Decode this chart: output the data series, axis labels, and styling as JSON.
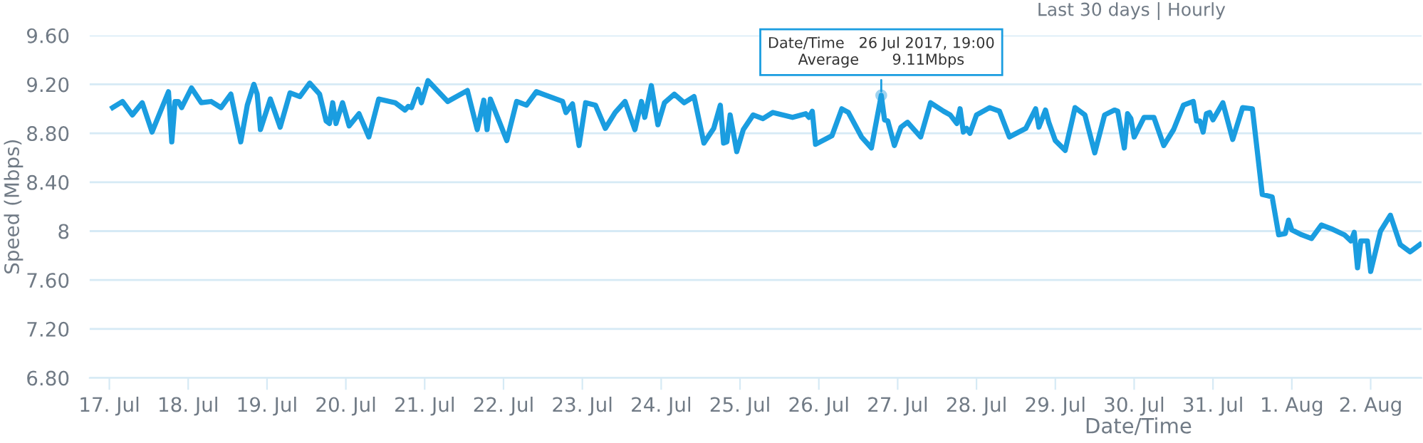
{
  "chart_data": {
    "type": "line",
    "subtitle": "Last 30 days | Hourly",
    "xlabel": "Date/Time",
    "ylabel": "Speed (Mbps)",
    "x": [
      "2017-07-17T01:00",
      "2017-07-17T04:00",
      "2017-07-17T07:00",
      "2017-07-17T10:00",
      "2017-07-17T13:00",
      "2017-07-17T18:00",
      "2017-07-17T19:00",
      "2017-07-17T20:00",
      "2017-07-17T21:00",
      "2017-07-17T22:00",
      "2017-07-18T01:00",
      "2017-07-18T04:00",
      "2017-07-18T07:00",
      "2017-07-18T10:00",
      "2017-07-18T13:00",
      "2017-07-18T16:00",
      "2017-07-18T18:00",
      "2017-07-18T20:00",
      "2017-07-18T21:00",
      "2017-07-18T22:00",
      "2017-07-19T01:00",
      "2017-07-19T04:00",
      "2017-07-19T07:00",
      "2017-07-19T10:00",
      "2017-07-19T13:00",
      "2017-07-19T16:00",
      "2017-07-19T18:00",
      "2017-07-19T19:00",
      "2017-07-19T20:00",
      "2017-07-19T21:00",
      "2017-07-19T23:00",
      "2017-07-20T01:00",
      "2017-07-20T04:00",
      "2017-07-20T07:00",
      "2017-07-20T10:00",
      "2017-07-20T15:00",
      "2017-07-20T18:00",
      "2017-07-20T19:00",
      "2017-07-20T20:00",
      "2017-07-20T22:00",
      "2017-07-20T23:00",
      "2017-07-21T01:00",
      "2017-07-21T07:00",
      "2017-07-21T13:00",
      "2017-07-21T16:00",
      "2017-07-21T18:00",
      "2017-07-21T19:00",
      "2017-07-21T20:00",
      "2017-07-22T01:00",
      "2017-07-22T04:00",
      "2017-07-22T07:00",
      "2017-07-22T10:00",
      "2017-07-22T18:00",
      "2017-07-22T19:00",
      "2017-07-22T21:00",
      "2017-07-22T23:00",
      "2017-07-23T01:00",
      "2017-07-23T04:00",
      "2017-07-23T07:00",
      "2017-07-23T10:00",
      "2017-07-23T13:00",
      "2017-07-23T16:00",
      "2017-07-23T18:00",
      "2017-07-23T19:00",
      "2017-07-23T21:00",
      "2017-07-23T23:00",
      "2017-07-24T01:00",
      "2017-07-24T04:00",
      "2017-07-24T07:00",
      "2017-07-24T10:00",
      "2017-07-24T13:00",
      "2017-07-24T16:00",
      "2017-07-24T18:00",
      "2017-07-24T19:00",
      "2017-07-24T20:00",
      "2017-07-24T21:00",
      "2017-07-24T23:00",
      "2017-07-25T01:00",
      "2017-07-25T04:00",
      "2017-07-25T07:00",
      "2017-07-25T10:00",
      "2017-07-25T16:00",
      "2017-07-25T20:00",
      "2017-07-25T21:00",
      "2017-07-25T22:00",
      "2017-07-25T23:00",
      "2017-07-26T04:00",
      "2017-07-26T07:00",
      "2017-07-26T09:00",
      "2017-07-26T13:00",
      "2017-07-26T16:00",
      "2017-07-26T19:00",
      "2017-07-26T20:00",
      "2017-07-26T21:00",
      "2017-07-26T23:00",
      "2017-07-27T01:00",
      "2017-07-27T03:00",
      "2017-07-27T07:00",
      "2017-07-27T10:00",
      "2017-07-27T14:00",
      "2017-07-27T16:00",
      "2017-07-27T18:00",
      "2017-07-27T19:00",
      "2017-07-27T20:00",
      "2017-07-27T21:00",
      "2017-07-27T22:00",
      "2017-07-28T00:00",
      "2017-07-28T04:00",
      "2017-07-28T07:00",
      "2017-07-28T10:00",
      "2017-07-28T15:00",
      "2017-07-28T18:00",
      "2017-07-28T19:00",
      "2017-07-28T21:00",
      "2017-07-28T22:00",
      "2017-07-29T00:00",
      "2017-07-29T03:00",
      "2017-07-29T06:00",
      "2017-07-29T09:00",
      "2017-07-29T12:00",
      "2017-07-29T15:00",
      "2017-07-29T18:00",
      "2017-07-29T19:00",
      "2017-07-29T21:00",
      "2017-07-29T22:00",
      "2017-07-29T23:00",
      "2017-07-30T00:00",
      "2017-07-30T03:00",
      "2017-07-30T06:00",
      "2017-07-30T09:00",
      "2017-07-30T12:00",
      "2017-07-30T15:00",
      "2017-07-30T18:00",
      "2017-07-30T19:00",
      "2017-07-30T20:00",
      "2017-07-30T21:00",
      "2017-07-30T22:00",
      "2017-07-30T23:00",
      "2017-07-31T00:00",
      "2017-07-31T03:00",
      "2017-07-31T06:00",
      "2017-07-31T09:00",
      "2017-07-31T12:00",
      "2017-07-31T15:00",
      "2017-07-31T18:00",
      "2017-07-31T20:00",
      "2017-07-31T22:00",
      "2017-07-31T23:00",
      "2017-08-01T00:00",
      "2017-08-01T03:00",
      "2017-08-01T06:00",
      "2017-08-01T09:00",
      "2017-08-01T12:00",
      "2017-08-01T16:00",
      "2017-08-01T18:00",
      "2017-08-01T19:00",
      "2017-08-01T20:00",
      "2017-08-01T21:00",
      "2017-08-01T23:00",
      "2017-08-02T00:00",
      "2017-08-02T03:00",
      "2017-08-02T06:00",
      "2017-08-02T09:00",
      "2017-08-02T12:00",
      "2017-08-02T15:00"
    ],
    "series": [
      {
        "color": "#1a9de0",
        "values": [
          9.01,
          9.06,
          8.95,
          9.05,
          8.81,
          9.14,
          8.73,
          9.06,
          9.06,
          9.01,
          9.17,
          9.05,
          9.06,
          9.01,
          9.12,
          8.73,
          9.03,
          9.2,
          9.12,
          8.83,
          9.08,
          8.85,
          9.13,
          9.1,
          9.21,
          9.12,
          8.9,
          8.88,
          9.05,
          8.88,
          9.05,
          8.86,
          8.96,
          8.77,
          9.08,
          9.05,
          8.99,
          9.02,
          9.01,
          9.16,
          9.05,
          9.23,
          9.06,
          9.15,
          8.83,
          9.07,
          8.83,
          9.08,
          8.74,
          9.06,
          9.03,
          9.14,
          9.06,
          8.97,
          9.04,
          8.7,
          9.05,
          9.03,
          8.84,
          8.97,
          9.06,
          8.83,
          9.06,
          8.93,
          9.19,
          8.87,
          9.05,
          9.12,
          9.05,
          9.1,
          8.72,
          8.84,
          9.03,
          8.72,
          8.73,
          8.95,
          8.65,
          8.83,
          8.95,
          8.92,
          8.97,
          8.93,
          8.96,
          8.93,
          8.98,
          8.71,
          8.78,
          9.0,
          8.97,
          8.77,
          8.68,
          9.11,
          8.91,
          8.9,
          8.7,
          8.85,
          8.89,
          8.77,
          9.05,
          8.98,
          8.95,
          8.88,
          9.0,
          8.81,
          8.84,
          8.8,
          8.95,
          9.01,
          8.98,
          8.77,
          8.84,
          9.0,
          8.85,
          8.99,
          8.89,
          8.74,
          8.66,
          9.01,
          8.95,
          8.64,
          8.95,
          8.99,
          8.98,
          8.68,
          8.96,
          8.92,
          8.77,
          8.93,
          8.93,
          8.7,
          8.83,
          9.03,
          9.06,
          8.9,
          8.9,
          8.81,
          8.96,
          8.97,
          8.91,
          9.05,
          8.75,
          9.01,
          9.0,
          8.3,
          8.28,
          7.97,
          7.98,
          8.09,
          8.01,
          7.97,
          7.94,
          8.05,
          8.02,
          7.97,
          7.92,
          7.99,
          7.7,
          7.92,
          7.92,
          7.67,
          8.0,
          8.13,
          7.89,
          7.83,
          7.89
        ]
      }
    ],
    "xlim": [
      "2017-07-16T18:00",
      "2017-08-02T15:30"
    ],
    "xticks": [
      {
        "value": "2017-07-17",
        "label": "17. Jul"
      },
      {
        "value": "2017-07-18",
        "label": "18. Jul"
      },
      {
        "value": "2017-07-19",
        "label": "19. Jul"
      },
      {
        "value": "2017-07-20",
        "label": "20. Jul"
      },
      {
        "value": "2017-07-21",
        "label": "21. Jul"
      },
      {
        "value": "2017-07-22",
        "label": "22. Jul"
      },
      {
        "value": "2017-07-23",
        "label": "23. Jul"
      },
      {
        "value": "2017-07-24",
        "label": "24. Jul"
      },
      {
        "value": "2017-07-25",
        "label": "25. Jul"
      },
      {
        "value": "2017-07-26",
        "label": "26. Jul"
      },
      {
        "value": "2017-07-27",
        "label": "27. Jul"
      },
      {
        "value": "2017-07-28",
        "label": "28. Jul"
      },
      {
        "value": "2017-07-29",
        "label": "29. Jul"
      },
      {
        "value": "2017-07-30",
        "label": "30. Jul"
      },
      {
        "value": "2017-07-31",
        "label": "31. Jul"
      },
      {
        "value": "2017-08-01",
        "label": "1. Aug"
      },
      {
        "value": "2017-08-02",
        "label": "2. Aug"
      }
    ],
    "ylim": [
      6.8,
      9.6
    ],
    "yticks": [
      {
        "value": 6.8,
        "label": "6.80"
      },
      {
        "value": 7.2,
        "label": "7.20"
      },
      {
        "value": 7.6,
        "label": "7.60"
      },
      8,
      {
        "value": 8.4,
        "label": "8.40"
      },
      {
        "value": 8.8,
        "label": "8.80"
      },
      {
        "value": 9.2,
        "label": "9.20"
      },
      {
        "value": 9.6,
        "label": "9.60"
      }
    ],
    "grid": "y",
    "marker": "none",
    "line_style": "solid",
    "annotations": [
      {
        "text": "Date/Time   26 Jul 2017, 19:00\nAverage       9.11Mbps",
        "x": "2017-07-26T19:00",
        "y": 9.11
      }
    ]
  }
}
